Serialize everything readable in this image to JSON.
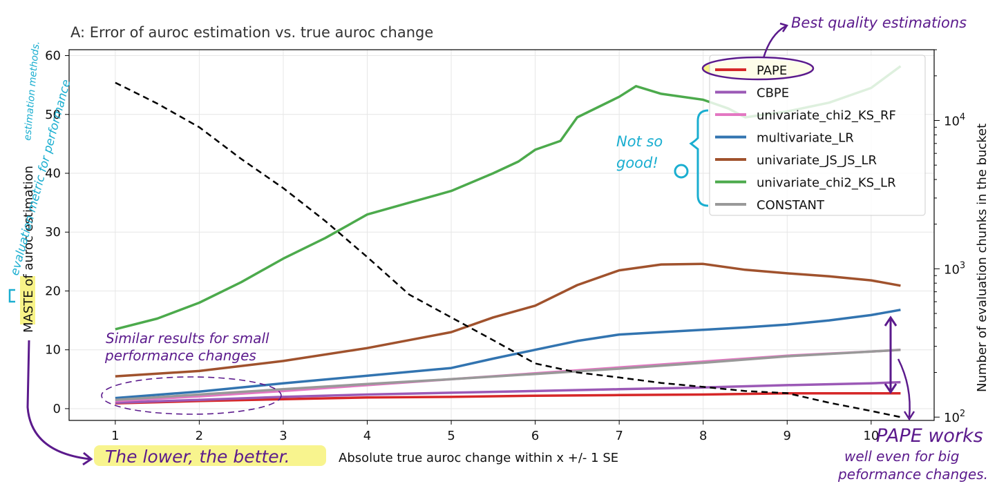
{
  "chart_data": {
    "type": "line",
    "title": "A: Error of auroc estimation vs. true auroc change",
    "xlabel": "Absolute true auroc change within x +/- 1 SE",
    "ylabel_prefix": "MASTE",
    "ylabel_rest": " of auroc estimation",
    "ylabel2": "Number of evaluation chunks in the bucket",
    "xlim": [
      0.45,
      10.75
    ],
    "ylim": [
      -2,
      61
    ],
    "y2lim_log": [
      95,
      30000
    ],
    "y2_scale": "log",
    "grid": true,
    "legend_position": "top-right",
    "x_ticks": [
      "1",
      "2",
      "3",
      "4",
      "5",
      "6",
      "7",
      "8",
      "9",
      "10"
    ],
    "y_ticks": [
      "0",
      "10",
      "20",
      "30",
      "40",
      "50",
      "60"
    ],
    "y2_ticks": [
      {
        "value": 100,
        "base": "10",
        "exp": "2"
      },
      {
        "value": 1000,
        "base": "10",
        "exp": "3"
      },
      {
        "value": 10000,
        "base": "10",
        "exp": "4"
      }
    ],
    "series": [
      {
        "name": "PAPE",
        "color": "#d62728",
        "x": [
          1,
          2,
          3,
          4,
          5,
          6,
          7,
          8,
          9,
          10,
          10.35
        ],
        "y": [
          0.9,
          1.3,
          1.6,
          1.9,
          2.0,
          2.2,
          2.3,
          2.4,
          2.6,
          2.6,
          2.6
        ]
      },
      {
        "name": "CBPE",
        "color": "#9b59b6",
        "x": [
          1,
          2,
          3,
          4,
          5,
          6,
          7,
          8,
          9,
          10,
          10.35
        ],
        "y": [
          1.0,
          1.5,
          2.0,
          2.4,
          2.7,
          3.0,
          3.3,
          3.6,
          4.0,
          4.3,
          4.5
        ]
      },
      {
        "name": "univariate_chi2_KS_RF",
        "color": "#e377c2",
        "x": [
          1,
          2,
          3,
          4,
          5,
          6,
          7,
          8,
          9,
          10,
          10.35
        ],
        "y": [
          1.3,
          2.1,
          3.0,
          4.0,
          5.0,
          6.0,
          7.0,
          8.0,
          9.0,
          9.7,
          10.0
        ]
      },
      {
        "name": "multivariate_LR",
        "color": "#3274b0",
        "x": [
          1,
          2,
          3,
          4,
          5,
          5.5,
          6,
          6.5,
          7,
          7.5,
          8,
          8.5,
          9,
          9.5,
          10,
          10.35
        ],
        "y": [
          1.8,
          2.9,
          4.3,
          5.6,
          6.9,
          8.5,
          10.0,
          11.5,
          12.6,
          13.0,
          13.4,
          13.8,
          14.3,
          15.0,
          15.9,
          16.8
        ]
      },
      {
        "name": "univariate_JS_JS_LR",
        "color": "#a0522d",
        "x": [
          1,
          2,
          3,
          4,
          5,
          5.5,
          6,
          6.5,
          7,
          7.5,
          8,
          8.5,
          9,
          9.5,
          10,
          10.35
        ],
        "y": [
          5.5,
          6.4,
          8.1,
          10.3,
          13.0,
          15.5,
          17.5,
          21.0,
          23.5,
          24.5,
          24.6,
          23.6,
          23.0,
          22.5,
          21.8,
          20.9
        ]
      },
      {
        "name": "univariate_chi2_KS_LR",
        "color": "#4caa4c",
        "x": [
          1,
          1.5,
          2,
          2.5,
          3,
          3.5,
          4,
          4.5,
          5,
          5.5,
          5.8,
          6,
          6.3,
          6.5,
          7,
          7.2,
          7.5,
          8,
          8.3,
          8.5,
          9,
          9.5,
          10,
          10.35
        ],
        "y": [
          13.5,
          15.3,
          18.0,
          21.5,
          25.5,
          29.0,
          33.0,
          35.0,
          37.0,
          40.0,
          42.0,
          44.0,
          45.5,
          49.5,
          53.0,
          54.8,
          53.5,
          52.5,
          51.0,
          49.5,
          50.5,
          52.0,
          54.5,
          58.2
        ]
      },
      {
        "name": "CONSTANT",
        "color": "#999999",
        "x": [
          1,
          2,
          3,
          4,
          5,
          6,
          7,
          8,
          9,
          10,
          10.35
        ],
        "y": [
          1.5,
          2.4,
          3.3,
          4.2,
          5.0,
          5.9,
          6.8,
          7.8,
          8.9,
          9.7,
          10.0
        ]
      }
    ],
    "count_series": {
      "axis": "right",
      "style": "dashed",
      "color": "#000000",
      "x": [
        1,
        1.5,
        2,
        2.5,
        3,
        3.5,
        4,
        4.5,
        5,
        5.5,
        6,
        6.5,
        7,
        7.5,
        8,
        8.5,
        9,
        9.5,
        10,
        10.35
      ],
      "y": [
        18000,
        13000,
        9000,
        5500,
        3500,
        2100,
        1200,
        670,
        470,
        330,
        230,
        200,
        185,
        170,
        160,
        150,
        145,
        125,
        110,
        100
      ]
    }
  },
  "annotations": {
    "best": "Best quality estimations",
    "not_so_good": "Not so good!",
    "similar_1": "Similar results for small",
    "similar_2": "performance changes",
    "lower_better": "The lower, the better.",
    "pape_1": "PAPE works",
    "pape_2": "well even for big",
    "pape_3": "peformance changes.",
    "eval_metric_1": "evaluation metric for performance",
    "eval_metric_2": "estimation methods.",
    "colors": {
      "purple": "#5b1a8c",
      "cyan": "#1aaed0",
      "highlight": "#f7f27a"
    }
  }
}
